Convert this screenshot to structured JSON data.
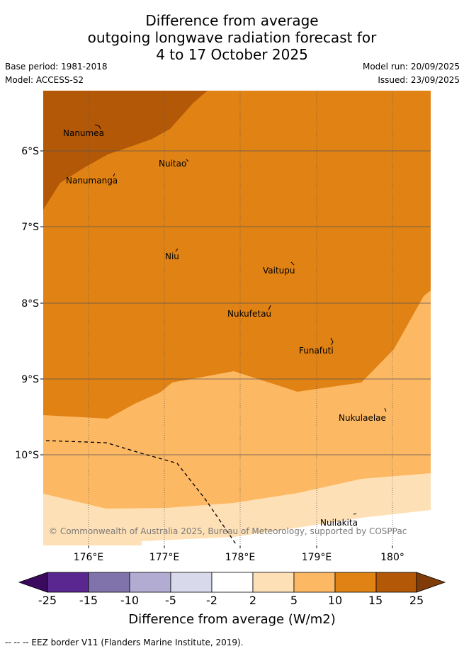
{
  "header": {
    "title_line1": "Difference from average",
    "title_line2": "outgoing longwave radiation forecast for",
    "title_line3": "4 to 17 October 2025",
    "base_period": "Base period: 1981-2018",
    "model": "Model: ACCESS-S2",
    "model_run": "Model run: 20/09/2025",
    "issued": "Issued: 23/09/2025"
  },
  "map": {
    "lat_labels": [
      "6°S",
      "7°S",
      "8°S",
      "9°S",
      "10°S"
    ],
    "lon_labels": [
      "176°E",
      "177°E",
      "178°E",
      "179°E",
      "180°"
    ],
    "places": {
      "nanumea": "Nanumea",
      "nuitao": "Nuitao",
      "nanumanga": "Nanumanga",
      "niu": "Niu",
      "vaitupu": "Vaitupu",
      "nukufetau": "Nukufetau",
      "funafuti": "Funafuti",
      "nukulaelae": "Nukulaelae",
      "nuilakita": "Nuilakita"
    },
    "copyright": "© Commonwealth of Australia 2025, Bureau of Meteorology, supported by COSPPac"
  },
  "colorbar": {
    "ticks": [
      "-25",
      "-15",
      "-10",
      "-5",
      "-2",
      "2",
      "5",
      "10",
      "15",
      "25"
    ],
    "colors": {
      "lt_min": "#3b0a5e",
      "m25_15": "#5a2790",
      "m15_10": "#8073ac",
      "m10_5": "#b2abd2",
      "m5_2": "#d8daeb",
      "m2_2": "#ffffff",
      "p2_5": "#fee0b6",
      "p5_10": "#fdb863",
      "p10_15": "#e08214",
      "p15_25": "#b35806",
      "gt_max": "#7f3b08"
    },
    "title": "Difference from average (W/m2)"
  },
  "legend": {
    "eez_note": "--  --  -- EEZ border V11 (Flanders Marine Institute, 2019)."
  }
}
